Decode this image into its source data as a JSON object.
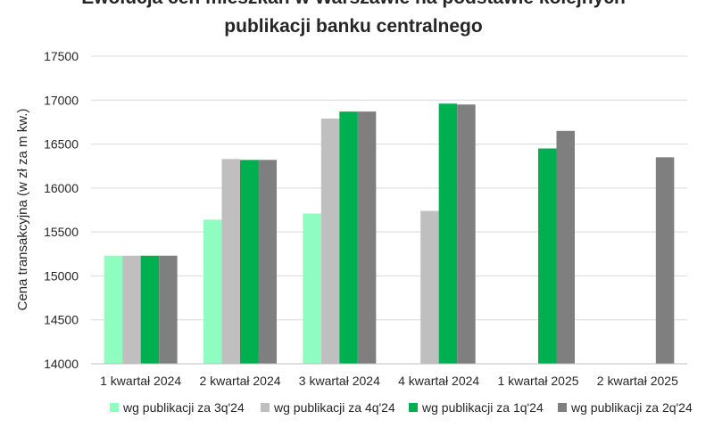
{
  "chart_data": {
    "type": "bar",
    "title_lines": [
      "Ewolucja cen mieszkań w Warszawie na podstawie kolejnych",
      "publikacji banku centralnego"
    ],
    "xlabel": "",
    "ylabel": "Cena transakcyjna (w zł za m kw.)",
    "ylim": [
      14000,
      17500
    ],
    "yticks": [
      14000,
      14500,
      15000,
      15500,
      16000,
      16500,
      17000,
      17500
    ],
    "grid": true,
    "legend_position": "bottom",
    "categories": [
      "1 kwartał 2024",
      "2 kwartał 2024",
      "3 kwartał 2024",
      "4 kwartał 2024",
      "1 kwartał 2025",
      "2 kwartał 2025"
    ],
    "series": [
      {
        "name": "wg publikacji za 3q'24",
        "color": "#8ffcc0",
        "values": [
          15230,
          15640,
          15710,
          null,
          null,
          null
        ]
      },
      {
        "name": "wg publikacji za 4q'24",
        "color": "#bfbfbf",
        "values": [
          15230,
          16330,
          16790,
          15740,
          null,
          null
        ]
      },
      {
        "name": "wg publikacji za 1q'24",
        "color": "#00b050",
        "values": [
          15230,
          16320,
          16870,
          16960,
          16450,
          null
        ]
      },
      {
        "name": "wg publikacji za 2q'24",
        "color": "#7f7f7f",
        "values": [
          15230,
          16320,
          16870,
          16950,
          16650,
          16350
        ]
      }
    ]
  }
}
